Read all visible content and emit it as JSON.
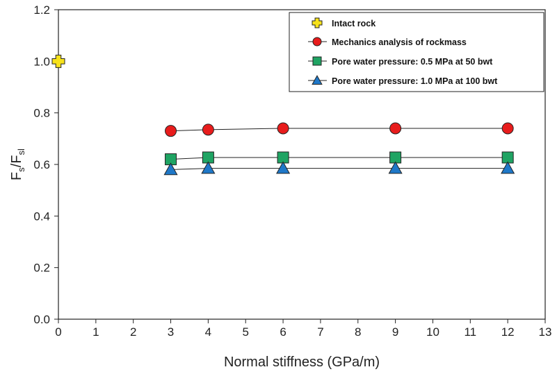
{
  "chart_data": {
    "type": "scatter",
    "xlabel": "Normal stiffness (GPa/m)",
    "ylabel": {
      "main": "F",
      "sub1": "s",
      "sep": "/F",
      "sub2": "sl"
    },
    "xlim": [
      0,
      13
    ],
    "ylim": [
      0,
      1.2
    ],
    "xticks": [
      "0",
      "1",
      "2",
      "3",
      "4",
      "5",
      "6",
      "7",
      "8",
      "9",
      "10",
      "11",
      "12",
      "13"
    ],
    "yticks": [
      "0.0",
      "0.2",
      "0.4",
      "0.6",
      "0.8",
      "1.0",
      "1.2"
    ],
    "grid": false,
    "legend_position": "top-right",
    "series": [
      {
        "name": "Intact rock",
        "marker": "plus",
        "color": "#f7e21b",
        "line": false,
        "x": [
          0
        ],
        "y": [
          1.0
        ]
      },
      {
        "name": "Mechanics analysis of rockmass",
        "marker": "circle",
        "color": "#e81c1c",
        "line": true,
        "x": [
          3,
          4,
          6,
          9,
          12
        ],
        "y": [
          0.73,
          0.735,
          0.74,
          0.74,
          0.74
        ]
      },
      {
        "name": "Pore water pressure: 0.5 MPa at 50 bwt",
        "marker": "square",
        "color": "#1fa463",
        "line": true,
        "x": [
          3,
          4,
          6,
          9,
          12
        ],
        "y": [
          0.62,
          0.627,
          0.627,
          0.627,
          0.627
        ]
      },
      {
        "name": "Pore water pressure: 1.0 MPa at 100 bwt",
        "marker": "triangle",
        "color": "#1f78c8",
        "line": true,
        "x": [
          3,
          4,
          6,
          9,
          12
        ],
        "y": [
          0.58,
          0.585,
          0.585,
          0.585,
          0.585
        ]
      }
    ]
  }
}
